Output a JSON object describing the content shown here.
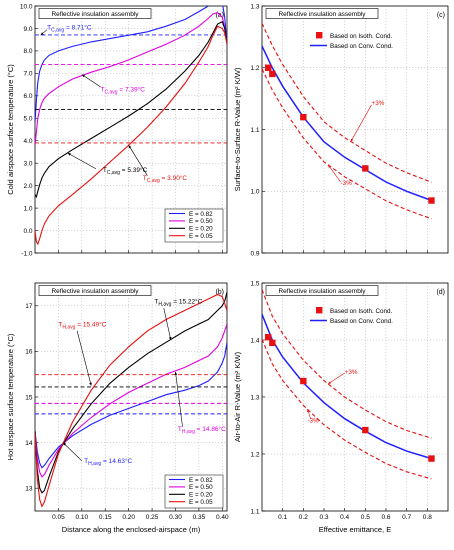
{
  "colors": {
    "blue": "#1f1fff",
    "magenta": "#e000e0",
    "black": "#000000",
    "red": "#e81010",
    "marker": "#e81010"
  },
  "chart_data": [
    {
      "id": "a",
      "type": "line",
      "panel_label": "(a)",
      "box_title": "Reflective insulation assembly",
      "xlabel": "",
      "ylabel": "Cold airspace surface temperature (°C)",
      "xlim": [
        0,
        0.41
      ],
      "ylim": [
        -1,
        10
      ],
      "x_ticks": [
        0.05,
        0.1,
        0.15,
        0.2,
        0.25,
        0.3,
        0.35,
        0.4
      ],
      "x_tick_labels": [
        "",
        "",
        "",
        "",
        "",
        "",
        "",
        ""
      ],
      "y_ticks": [
        -1,
        0,
        1,
        2,
        3,
        4,
        5,
        6,
        7,
        8,
        9,
        10
      ],
      "y_tick_labels": [
        "-1.0",
        "0.0",
        "1.0",
        "2.0",
        "3.0",
        "4.0",
        "5.0",
        "6.0",
        "7.0",
        "8.0",
        "9.0",
        "10.0"
      ],
      "legend": [
        "E = 0.82",
        "E = 0.50",
        "E = 0.20",
        "E = 0.05"
      ],
      "series": [
        {
          "name": "E = 0.82",
          "color": "blue",
          "avg": 8.71,
          "x": [
            0,
            0.003,
            0.006,
            0.01,
            0.015,
            0.02,
            0.03,
            0.05,
            0.08,
            0.12,
            0.16,
            0.2,
            0.24,
            0.28,
            0.32,
            0.35,
            0.37,
            0.38,
            0.39,
            0.4,
            0.405,
            0.41
          ],
          "y": [
            4.8,
            5.8,
            6.6,
            7.1,
            7.4,
            7.6,
            7.8,
            8.0,
            8.2,
            8.4,
            8.55,
            8.7,
            8.85,
            9.1,
            9.4,
            9.75,
            10.0,
            10.15,
            10.25,
            10.15,
            9.5,
            8.3
          ]
        },
        {
          "name": "E = 0.50",
          "color": "magenta",
          "avg": 7.39,
          "x": [
            0,
            0.003,
            0.006,
            0.01,
            0.015,
            0.02,
            0.03,
            0.05,
            0.08,
            0.12,
            0.16,
            0.2,
            0.24,
            0.28,
            0.32,
            0.35,
            0.37,
            0.38,
            0.39,
            0.4,
            0.405,
            0.41
          ],
          "y": [
            3.8,
            4.4,
            5.0,
            5.4,
            5.7,
            5.9,
            6.1,
            6.4,
            6.75,
            7.05,
            7.3,
            7.6,
            7.95,
            8.3,
            8.7,
            9.1,
            9.45,
            9.65,
            9.7,
            9.5,
            9.05,
            8.3
          ]
        },
        {
          "name": "E = 0.20",
          "color": "black",
          "avg": 5.39,
          "x": [
            0,
            0.003,
            0.006,
            0.01,
            0.015,
            0.02,
            0.03,
            0.05,
            0.08,
            0.12,
            0.16,
            0.2,
            0.24,
            0.28,
            0.32,
            0.35,
            0.37,
            0.38,
            0.39,
            0.4,
            0.405,
            0.41
          ],
          "y": [
            1.6,
            1.5,
            1.75,
            2.05,
            2.35,
            2.55,
            2.85,
            3.2,
            3.6,
            4.1,
            4.6,
            5.1,
            5.65,
            6.3,
            7.1,
            7.8,
            8.4,
            8.8,
            9.2,
            9.3,
            9.0,
            8.35
          ]
        },
        {
          "name": "E = 0.05",
          "color": "red",
          "avg": 3.9,
          "x": [
            0,
            0.003,
            0.006,
            0.01,
            0.015,
            0.02,
            0.03,
            0.05,
            0.08,
            0.12,
            0.16,
            0.2,
            0.24,
            0.28,
            0.32,
            0.35,
            0.37,
            0.38,
            0.39,
            0.4,
            0.405,
            0.41
          ],
          "y": [
            0.0,
            -0.5,
            -0.6,
            -0.35,
            0.0,
            0.3,
            0.65,
            1.1,
            1.6,
            2.3,
            3.05,
            3.8,
            4.6,
            5.5,
            6.55,
            7.5,
            8.2,
            8.7,
            9.1,
            9.0,
            8.8,
            8.3
          ]
        }
      ],
      "annotations": [
        {
          "series": 0,
          "pre": "T",
          "sub": "C,avg",
          "post": " = 8.71°C"
        },
        {
          "series": 1,
          "pre": "T",
          "sub": "C,avg",
          "post": " = 7.39°C"
        },
        {
          "series": 2,
          "pre": "T",
          "sub": "C,avg",
          "post": " = 5.39°C"
        },
        {
          "series": 3,
          "pre": "T",
          "sub": "C,avg",
          "post": " = 3.90°C"
        }
      ]
    },
    {
      "id": "b",
      "type": "line",
      "panel_label": "(b)",
      "box_title": "Reflective insulation assembly",
      "xlabel": "Distance along the enclosed-airspace (m)",
      "ylabel": "Hot airspace surface temperature (°C)",
      "xlim": [
        0,
        0.41
      ],
      "ylim": [
        12.5,
        17.5
      ],
      "x_ticks": [
        0.05,
        0.1,
        0.15,
        0.2,
        0.25,
        0.3,
        0.35,
        0.4
      ],
      "x_tick_labels": [
        "0.05",
        "0.10",
        "0.15",
        "0.20",
        "0.25",
        "0.30",
        "0.35",
        "0.40"
      ],
      "y_ticks": [
        13,
        14,
        15,
        16,
        17
      ],
      "y_tick_labels": [
        "13",
        "14",
        "15",
        "16",
        "17"
      ],
      "legend": [
        "E = 0.82",
        "E = 0.50",
        "E = 0.20",
        "E = 0.05"
      ],
      "series": [
        {
          "name": "E = 0.82",
          "color": "blue",
          "avg": 14.63,
          "x": [
            0,
            0.005,
            0.01,
            0.015,
            0.02,
            0.03,
            0.05,
            0.08,
            0.12,
            0.16,
            0.2,
            0.24,
            0.28,
            0.32,
            0.35,
            0.37,
            0.38,
            0.39,
            0.4,
            0.405,
            0.41
          ],
          "y": [
            14.25,
            13.8,
            13.55,
            13.45,
            13.5,
            13.65,
            13.9,
            14.15,
            14.4,
            14.6,
            14.75,
            14.9,
            15.05,
            15.15,
            15.25,
            15.35,
            15.45,
            15.55,
            15.75,
            15.9,
            16.2
          ]
        },
        {
          "name": "E = 0.50",
          "color": "magenta",
          "avg": 14.86,
          "x": [
            0,
            0.005,
            0.01,
            0.015,
            0.02,
            0.03,
            0.05,
            0.08,
            0.12,
            0.16,
            0.2,
            0.24,
            0.28,
            0.32,
            0.35,
            0.37,
            0.38,
            0.39,
            0.4,
            0.405,
            0.41
          ],
          "y": [
            14.25,
            13.65,
            13.35,
            13.25,
            13.3,
            13.5,
            13.85,
            14.2,
            14.55,
            14.85,
            15.1,
            15.3,
            15.5,
            15.65,
            15.8,
            15.9,
            16.0,
            16.1,
            16.3,
            16.45,
            16.6
          ]
        },
        {
          "name": "E = 0.20",
          "color": "black",
          "avg": 15.22,
          "x": [
            0,
            0.005,
            0.01,
            0.015,
            0.02,
            0.03,
            0.05,
            0.08,
            0.12,
            0.16,
            0.2,
            0.24,
            0.28,
            0.32,
            0.35,
            0.37,
            0.38,
            0.39,
            0.4,
            0.405,
            0.41
          ],
          "y": [
            14.25,
            13.4,
            13.0,
            12.9,
            12.95,
            13.25,
            13.8,
            14.3,
            14.85,
            15.3,
            15.65,
            15.95,
            16.2,
            16.45,
            16.6,
            16.7,
            16.8,
            16.9,
            17.0,
            17.1,
            17.3
          ]
        },
        {
          "name": "E = 0.05",
          "color": "red",
          "avg": 15.49,
          "x": [
            0,
            0.005,
            0.01,
            0.015,
            0.02,
            0.03,
            0.05,
            0.08,
            0.12,
            0.16,
            0.2,
            0.24,
            0.28,
            0.32,
            0.35,
            0.37,
            0.38,
            0.39,
            0.4,
            0.405,
            0.41
          ],
          "y": [
            14.2,
            13.2,
            12.75,
            12.6,
            12.7,
            13.05,
            13.75,
            14.45,
            15.15,
            15.7,
            16.1,
            16.45,
            16.7,
            16.9,
            17.05,
            17.15,
            17.2,
            17.25,
            17.2,
            17.05,
            16.9
          ]
        }
      ],
      "annotations": [
        {
          "series": 2,
          "pre": "T",
          "sub": "H,avg",
          "post": " = 15.22°C"
        },
        {
          "series": 3,
          "pre": "T",
          "sub": "H,avg",
          "post": " = 15.49°C"
        },
        {
          "series": 1,
          "pre": "T",
          "sub": "H,avg",
          "post": " = 14.86°C"
        },
        {
          "series": 0,
          "pre": "T",
          "sub": "H,avg",
          "post": " = 14.63°C"
        }
      ]
    },
    {
      "id": "c",
      "type": "scatter",
      "panel_label": "(c)",
      "box_title": "Reflective insulation assembly",
      "xlabel": "",
      "ylabel": "Surface-to-Surface R-Value (m² K/W)",
      "xlim": [
        0,
        0.9
      ],
      "ylim": [
        0.9,
        1.3
      ],
      "x_ticks": [
        0.1,
        0.2,
        0.3,
        0.4,
        0.5,
        0.6,
        0.7,
        0.8
      ],
      "x_tick_labels": [
        "",
        "",
        "",
        "",
        "",
        "",
        "",
        ""
      ],
      "y_ticks": [
        0.9,
        1.0,
        1.1,
        1.2,
        1.3
      ],
      "y_tick_labels": [
        "0.9",
        "1.0",
        "1.1",
        "1.2",
        "1.3"
      ],
      "legend_markers": "Based on Isoth. Cond.",
      "legend_line": "Based on Conv. Cond.",
      "points": {
        "x": [
          0.03,
          0.05,
          0.2,
          0.5,
          0.82
        ],
        "y": [
          1.2,
          1.19,
          1.12,
          1.037,
          0.985
        ]
      },
      "curve": {
        "x": [
          0,
          0.05,
          0.1,
          0.2,
          0.3,
          0.4,
          0.5,
          0.6,
          0.7,
          0.82
        ],
        "y": [
          1.235,
          1.2,
          1.17,
          1.12,
          1.08,
          1.055,
          1.035,
          1.015,
          1.0,
          0.985
        ]
      },
      "band": 0.03,
      "band_labels": [
        "+3%",
        "-3%"
      ]
    },
    {
      "id": "d",
      "type": "scatter",
      "panel_label": "(d)",
      "box_title": "Reflective insulation assembly",
      "xlabel": "Effective emittance, E",
      "ylabel": "Air-to-Air R-Value (m² K/W)",
      "xlim": [
        0,
        0.9
      ],
      "ylim": [
        1.1,
        1.5
      ],
      "x_ticks": [
        0.1,
        0.2,
        0.3,
        0.4,
        0.5,
        0.6,
        0.7,
        0.8
      ],
      "x_tick_labels": [
        "0.1",
        "0.2",
        "0.3",
        "0.4",
        "0.5",
        "0.6",
        "0.7",
        "0.8"
      ],
      "y_ticks": [
        1.1,
        1.2,
        1.3,
        1.4,
        1.5
      ],
      "y_tick_labels": [
        "1.1",
        "1.2",
        "1.3",
        "1.4",
        "1.5"
      ],
      "legend_markers": "Based on Isoth. Cond.",
      "legend_line": "Based on Conv. Cond.",
      "points": {
        "x": [
          0.03,
          0.05,
          0.2,
          0.5,
          0.82
        ],
        "y": [
          1.405,
          1.395,
          1.328,
          1.242,
          1.192
        ]
      },
      "curve": {
        "x": [
          0,
          0.05,
          0.1,
          0.2,
          0.3,
          0.4,
          0.5,
          0.6,
          0.7,
          0.82
        ],
        "y": [
          1.445,
          1.4,
          1.37,
          1.325,
          1.29,
          1.262,
          1.24,
          1.22,
          1.205,
          1.192
        ]
      },
      "band": 0.03,
      "band_labels": [
        "+3%",
        "-3%"
      ]
    }
  ]
}
